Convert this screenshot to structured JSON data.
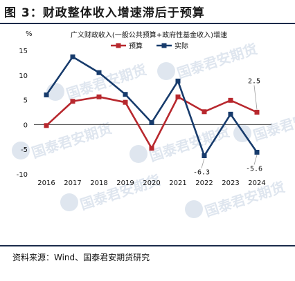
{
  "figure": {
    "title": "图 3：财政整体收入增速滞后于预算",
    "source": "资料来源：Wind、国泰君安期货研究"
  },
  "watermark": {
    "text": "国泰君安期货",
    "color": "#dfe6ef"
  },
  "colors": {
    "budget": "#b8282e",
    "actual": "#173b6c",
    "rule": "#1a2a4a"
  },
  "chart_data": {
    "type": "line",
    "title": "广义财政收入(一般公共预算+政府性基金收入)增速",
    "unit_label": "%",
    "categories": [
      "2016",
      "2017",
      "2018",
      "2019",
      "2020",
      "2021",
      "2022",
      "2023",
      "2024"
    ],
    "series": [
      {
        "name": "预算",
        "values": [
          -0.2,
          4.7,
          5.6,
          4.5,
          -4.8,
          5.6,
          2.6,
          4.9,
          2.5
        ],
        "color": "#b8282e"
      },
      {
        "name": "实际",
        "values": [
          6.0,
          13.7,
          10.5,
          6.1,
          0.4,
          8.8,
          -6.3,
          2.1,
          -5.6
        ],
        "color": "#173b6c"
      }
    ],
    "yticks": [
      -10,
      -5,
      0,
      5,
      10,
      15
    ],
    "ylim": [
      -10,
      15
    ],
    "grid": false,
    "legend_position": "top-center",
    "annotations": [
      {
        "text": "2.5",
        "series": 0,
        "index": 8
      },
      {
        "text": "-6.3",
        "series": 1,
        "index": 6
      },
      {
        "text": "-5.6",
        "series": 1,
        "index": 8
      }
    ]
  }
}
